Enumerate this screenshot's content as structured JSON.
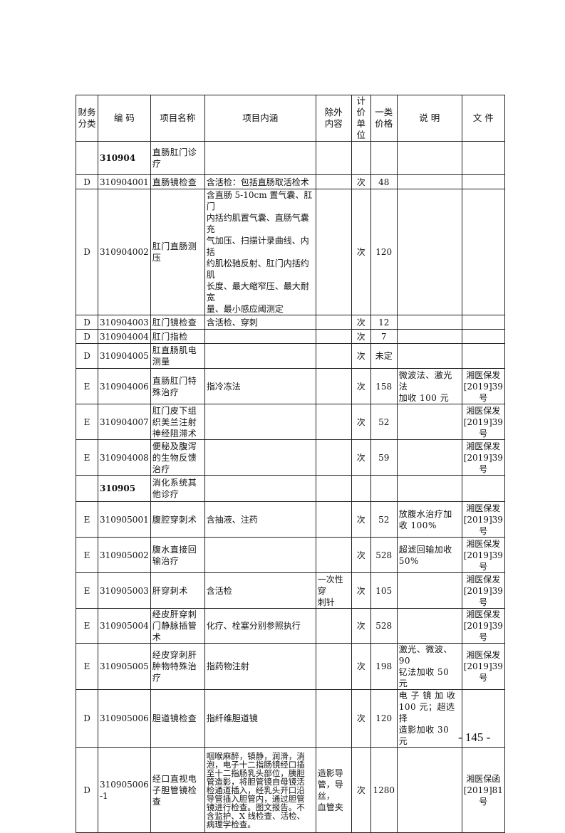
{
  "headers": [
    "财务\n分类",
    "编  码",
    "项目名称",
    "项目内涵",
    "除外\n内容",
    "计价\n单位",
    "一类\n价格",
    "说    明",
    "文 件"
  ],
  "rows": [
    {
      "cat": "",
      "code": "310904",
      "name": "直肠肛门诊\n疗",
      "content": "",
      "excl": "",
      "unit": "",
      "price": "",
      "note": "",
      "doc": "",
      "bold": true
    },
    {
      "cat": "D",
      "code": "310904001",
      "name": "直肠镜检查",
      "content": "含活检：包括直肠取活检术",
      "excl": "",
      "unit": "次",
      "price": "48",
      "note": "",
      "doc": ""
    },
    {
      "cat": "D",
      "code": "310904002",
      "name": "肛门直肠测\n压",
      "content": "含直肠 5-10cm 置气囊、肛门\n内括约肌置气囊、直肠气囊充\n气加压、扫描计录曲线、内括\n约肌松驰反射、肛门内括约肌\n长度、最大缩窄压、最大耐宽\n量、最小感应阈测定",
      "excl": "",
      "unit": "次",
      "price": "120",
      "note": "",
      "doc": ""
    },
    {
      "cat": "D",
      "code": "310904003",
      "name": "肛门镜检查",
      "content": "含活检、穿刺",
      "excl": "",
      "unit": "次",
      "price": "12",
      "note": "",
      "doc": ""
    },
    {
      "cat": "D",
      "code": "310904004",
      "name": "肛门指检",
      "content": "",
      "excl": "",
      "unit": "次",
      "price": "7",
      "note": "",
      "doc": ""
    },
    {
      "cat": "D",
      "code": "310904005",
      "name": "肛直肠肌电\n测量",
      "content": "",
      "excl": "",
      "unit": "次",
      "price": "未定",
      "note": "",
      "doc": ""
    },
    {
      "cat": "E",
      "code": "310904006",
      "name": "直肠肛门特\n殊治疗",
      "content": "指冷冻法",
      "excl": "",
      "unit": "次",
      "price": "158",
      "note": "微波法、激光法\n加收 100 元",
      "doc": "湘医保发\n[2019]39\n号"
    },
    {
      "cat": "E",
      "code": "310904007",
      "name": "肛门皮下组\n织美兰注射\n神经阻滞术",
      "content": "",
      "excl": "",
      "unit": "次",
      "price": "52",
      "note": "",
      "doc": "湘医保发\n[2019]39\n号"
    },
    {
      "cat": "E",
      "code": "310904008",
      "name": "便秘及腹泻\n的生物反馈\n治疗",
      "content": "",
      "excl": "",
      "unit": "次",
      "price": "59",
      "note": "",
      "doc": "湘医保发\n[2019]39\n号"
    },
    {
      "cat": "",
      "code": "310905",
      "name": "消化系统其\n他诊疗",
      "content": "",
      "excl": "",
      "unit": "",
      "price": "",
      "note": "",
      "doc": "",
      "bold": true
    },
    {
      "cat": "E",
      "code": "310905001",
      "name": "腹腔穿刺术",
      "content": "含抽液、注药",
      "excl": "",
      "unit": "次",
      "price": "52",
      "note": "放腹水治疗加\n收 100%",
      "doc": "湘医保发\n[2019]39\n号"
    },
    {
      "cat": "E",
      "code": "310905002",
      "name": "腹水直接回\n输治疗",
      "content": "",
      "excl": "",
      "unit": "次",
      "price": "528",
      "note": "超滤回输加收\n50%",
      "doc": "湘医保发\n[2019]39\n号"
    },
    {
      "cat": "E",
      "code": "310905003",
      "name": "肝穿刺术",
      "content": "含活检",
      "excl": "一次性穿\n刺针",
      "unit": "次",
      "price": "105",
      "note": "",
      "doc": "湘医保发\n[2019]39\n号"
    },
    {
      "cat": "E",
      "code": "310905004",
      "name": "经皮肝穿刺\n门静脉插管\n术",
      "content": "化疗、栓塞分别参照执行",
      "excl": "",
      "unit": "次",
      "price": "528",
      "note": "",
      "doc": "湘医保发\n[2019]39\n号"
    },
    {
      "cat": "E",
      "code": "310905005",
      "name": "经皮穿刺肝\n肿物特殊治\n疗",
      "content": "指药物注射",
      "excl": "",
      "unit": "次",
      "price": "198",
      "note": "激光、微波、90\n钇法加收 50 元",
      "doc": "湘医保发\n[2019]39\n号"
    },
    {
      "cat": "D",
      "code": "310905006",
      "name": "胆道镜检查",
      "content": "指纤维胆道镜",
      "excl": "",
      "unit": "次",
      "price": "120",
      "note": "电 子 镜 加 收\n100 元；超选择\n造影加收 30 元",
      "doc": ""
    },
    {
      "cat": "D",
      "code": "310905006\n-1",
      "name": "经口直视电\n子胆管镜检\n查",
      "content": "咽喉麻醉，镇静，润滑，消\n泡，电子十二指肠镜经口插\n至十二指肠乳头部位，胰胆\n管造影，将胆管镜自母镜活\n检通道插入，经乳头开口沿\n导管插入胆管内，通过胆管\n镜进行检查。图文报告。不\n含监护、X 线检查、活检、\n病理学检查。",
      "excl": "造影导\n管，导丝，\n血管夹",
      "unit": "次",
      "price": "1280",
      "note": "",
      "doc": "湘医保函\n[2019]81\n号",
      "dense": true
    }
  ],
  "page_number": "- 145 -"
}
